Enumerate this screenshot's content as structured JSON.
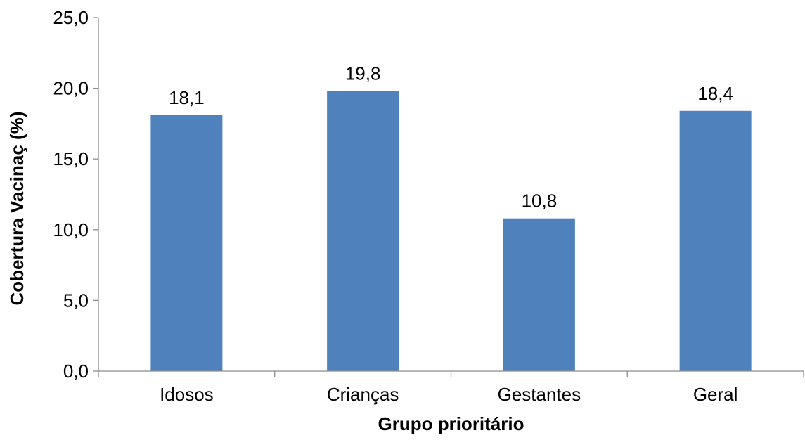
{
  "chart_data": {
    "type": "bar",
    "categories": [
      "Idosos",
      "Crianças",
      "Gestantes",
      "Geral"
    ],
    "values": [
      18.1,
      19.8,
      10.8,
      18.4
    ],
    "data_labels": [
      "18,1",
      "19,8",
      "10,8",
      "18,4"
    ],
    "title": "",
    "xlabel": "Grupo prioritário",
    "ylabel": "Cobertura Vacinaç (%)",
    "ylim": [
      0,
      25
    ],
    "yticks": [
      0,
      5,
      10,
      15,
      20,
      25
    ],
    "ytick_labels": [
      "0,0",
      "5,0",
      "10,0",
      "15,0",
      "20,0",
      "25,0"
    ],
    "grid": false,
    "legend": "none",
    "bar_color": "#4f81bd",
    "axis_color": "#8c8c8c"
  }
}
